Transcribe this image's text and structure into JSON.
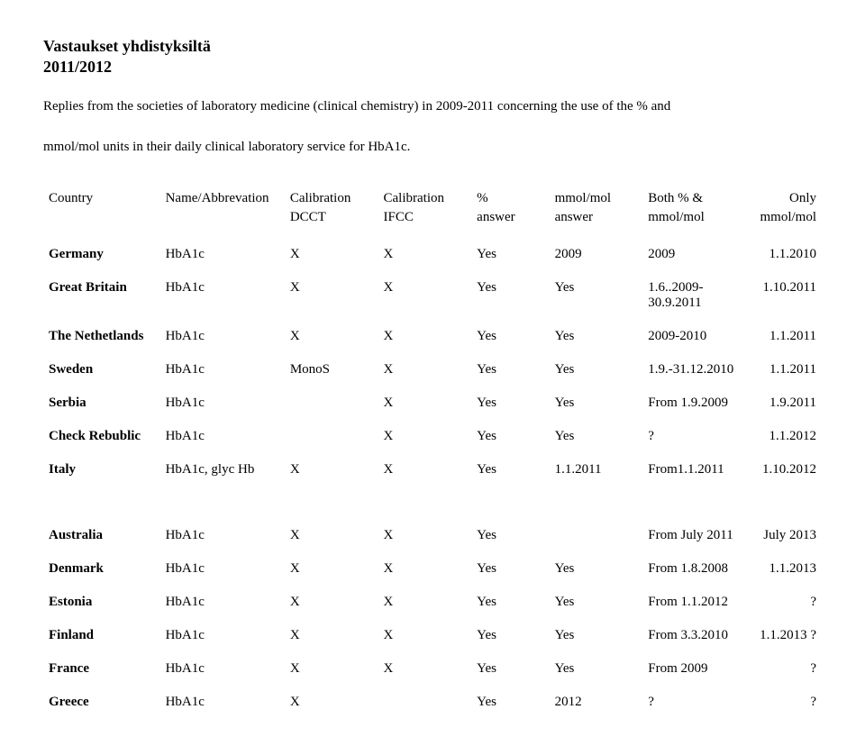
{
  "title_line1": "Vastaukset yhdistyksiltä",
  "title_line2": "2011/2012",
  "intro_line1": "Replies from the societies of laboratory medicine (clinical chemistry) in 2009-2011 concerning the use of the % and",
  "intro_line2": "mmol/mol units in their daily clinical laboratory service for HbA1c.",
  "headers": {
    "r1": [
      "Country",
      "Name/Abbrevation",
      "Calibration",
      "Calibration",
      "%",
      "mmol/mol",
      "Both % &",
      "Only"
    ],
    "r2": [
      "",
      "",
      "DCCT",
      "IFCC",
      "answer",
      "answer",
      "mmol/mol",
      "mmol/mol"
    ]
  },
  "group1": [
    {
      "c": "Germany",
      "n": "HbA1c",
      "cal1": "X",
      "cal2": "X",
      "pct": "Yes",
      "mm": "2009",
      "both": "2009",
      "only": "1.1.2010"
    },
    {
      "c": "Great Britain",
      "n": "HbA1c",
      "cal1": "X",
      "cal2": "X",
      "pct": "Yes",
      "mm": "Yes",
      "both": "1.6..2009-30.9.2011",
      "only": "1.10.2011"
    },
    {
      "c": "The Nethetlands",
      "n": "HbA1c",
      "cal1": "X",
      "cal2": "X",
      "pct": "Yes",
      "mm": "Yes",
      "both": "2009-2010",
      "only": "1.1.2011"
    },
    {
      "c": "Sweden",
      "n": "HbA1c",
      "cal1": "MonoS",
      "cal2": "X",
      "pct": "Yes",
      "mm": "Yes",
      "both": "1.9.-31.12.2010",
      "only": "1.1.2011"
    },
    {
      "c": "Serbia",
      "n": "HbA1c",
      "cal1": "",
      "cal2": "X",
      "pct": "Yes",
      "mm": "Yes",
      "both": "From 1.9.2009",
      "only": "1.9.2011"
    },
    {
      "c": "Check Rebublic",
      "n": "HbA1c",
      "cal1": "",
      "cal2": "X",
      "pct": "Yes",
      "mm": "Yes",
      "both": "?",
      "only": "1.1.2012"
    },
    {
      "c": "Italy",
      "n": "HbA1c, glyc Hb",
      "cal1": "X",
      "cal2": "X",
      "pct": "Yes",
      "mm": "1.1.2011",
      "both": "From1.1.2011",
      "only": "1.10.2012"
    }
  ],
  "group2": [
    {
      "c": "Australia",
      "n": "HbA1c",
      "cal1": "X",
      "cal2": "X",
      "pct": "Yes",
      "mm": "",
      "both": "From July 2011",
      "only": "July 2013"
    },
    {
      "c": "Denmark",
      "n": "HbA1c",
      "cal1": "X",
      "cal2": "X",
      "pct": "Yes",
      "mm": "Yes",
      "both": "From 1.8.2008",
      "only": "1.1.2013"
    },
    {
      "c": "Estonia",
      "n": "HbA1c",
      "cal1": "X",
      "cal2": "X",
      "pct": "Yes",
      "mm": "Yes",
      "both": "From 1.1.2012",
      "only": "?"
    },
    {
      "c": "Finland",
      "n": "HbA1c",
      "cal1": "X",
      "cal2": "X",
      "pct": "Yes",
      "mm": "Yes",
      "both": "From 3.3.2010",
      "only": "1.1.2013 ?"
    },
    {
      "c": "France",
      "n": "HbA1c",
      "cal1": "X",
      "cal2": "X",
      "pct": "Yes",
      "mm": "Yes",
      "both": "From 2009",
      "only": "?"
    },
    {
      "c": "Greece",
      "n": "HbA1c",
      "cal1": "X",
      "cal2": "",
      "pct": "Yes",
      "mm": "2012",
      "both": "?",
      "only": "?"
    }
  ]
}
